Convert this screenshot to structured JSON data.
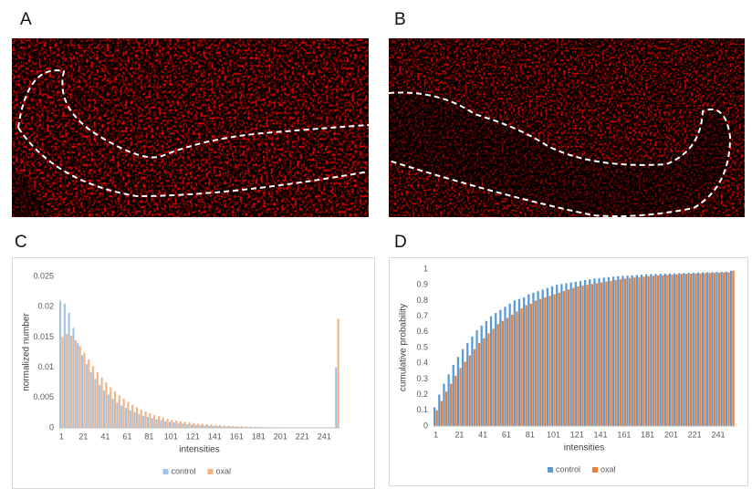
{
  "panel_labels": [
    "A",
    "B",
    "C",
    "D"
  ],
  "chart_data": [
    {
      "type": "bar",
      "x_label": "intensities",
      "y_label": "normalized number",
      "legend": "bottom",
      "grid": false,
      "categories": [
        "1",
        null,
        null,
        null,
        null,
        "21",
        null,
        null,
        null,
        null,
        "41",
        null,
        null,
        null,
        null,
        "61",
        null,
        null,
        null,
        null,
        "81",
        null,
        null,
        null,
        null,
        "101",
        null,
        null,
        null,
        null,
        "121",
        null,
        null,
        null,
        null,
        "141",
        null,
        null,
        null,
        null,
        "161",
        null,
        null,
        null,
        null,
        "181",
        null,
        null,
        null,
        null,
        "201",
        null,
        null,
        null,
        null,
        "221",
        null,
        null,
        null,
        null,
        "241",
        null,
        null,
        null
      ],
      "ylim": [
        0,
        0.025
      ],
      "yticks": [
        0,
        0.005,
        0.01,
        0.015,
        0.02,
        0.025
      ],
      "series": [
        {
          "name": "control",
          "color": "#9dc3e6",
          "values": [
            0.021,
            0.0205,
            0.019,
            0.0165,
            0.014,
            0.012,
            0.0105,
            0.0092,
            0.0081,
            0.0071,
            0.0062,
            0.0055,
            0.0048,
            0.0042,
            0.0037,
            0.0033,
            0.0029,
            0.0026,
            0.0023,
            0.002,
            0.0018,
            0.0016,
            0.0014,
            0.0013,
            0.0011,
            0.001,
            0.0009,
            0.0008,
            0.0007,
            0.0006,
            0.00055,
            0.0005,
            0.00045,
            0.0004,
            0.00035,
            0.0003,
            0.00028,
            0.00025,
            0.00022,
            0.0002,
            0.00018,
            0.00016,
            0.00014,
            0.00012,
            0.0001,
            0.0001,
            9e-05,
            8e-05,
            7e-05,
            6e-05,
            5e-05,
            5e-05,
            4e-05,
            4e-05,
            3e-05,
            3e-05,
            2e-05,
            2e-05,
            2e-05,
            1e-05,
            1e-05,
            1e-05,
            1e-05,
            0.01
          ]
        },
        {
          "name": "oxal",
          "color": "#f4b183",
          "values": [
            0.015,
            0.0155,
            0.0152,
            0.0145,
            0.0135,
            0.0124,
            0.0113,
            0.0102,
            0.0092,
            0.0083,
            0.0075,
            0.0067,
            0.006,
            0.0054,
            0.0048,
            0.0043,
            0.0038,
            0.0034,
            0.003,
            0.0027,
            0.0024,
            0.0021,
            0.0019,
            0.0017,
            0.0015,
            0.0013,
            0.0012,
            0.0011,
            0.001,
            0.0009,
            0.0008,
            0.0007,
            0.00065,
            0.0006,
            0.00055,
            0.0005,
            0.00045,
            0.0004,
            0.00035,
            0.0003,
            0.00028,
            0.00025,
            0.00022,
            0.0002,
            0.00018,
            0.00016,
            0.00014,
            0.00012,
            0.0001,
            9e-05,
            8e-05,
            7e-05,
            6e-05,
            5e-05,
            5e-05,
            4e-05,
            4e-05,
            3e-05,
            3e-05,
            2e-05,
            2e-05,
            2e-05,
            1e-05,
            0.018
          ]
        }
      ]
    },
    {
      "type": "bar",
      "x_label": "intensities",
      "y_label": "cumulative probability",
      "legend": "bottom",
      "grid": false,
      "categories": [
        "1",
        null,
        null,
        null,
        null,
        "21",
        null,
        null,
        null,
        null,
        "41",
        null,
        null,
        null,
        null,
        "61",
        null,
        null,
        null,
        null,
        "81",
        null,
        null,
        null,
        null,
        "101",
        null,
        null,
        null,
        null,
        "121",
        null,
        null,
        null,
        null,
        "141",
        null,
        null,
        null,
        null,
        "161",
        null,
        null,
        null,
        null,
        "181",
        null,
        null,
        null,
        null,
        "201",
        null,
        null,
        null,
        null,
        "221",
        null,
        null,
        null,
        null,
        "241",
        null,
        null,
        null
      ],
      "ylim": [
        0,
        1
      ],
      "yticks": [
        0,
        0.1,
        0.2,
        0.3,
        0.4,
        0.5,
        0.6,
        0.7,
        0.8,
        0.9,
        1
      ],
      "series": [
        {
          "name": "control",
          "color": "#5b9bd5",
          "values": [
            0.12,
            0.2,
            0.27,
            0.33,
            0.39,
            0.44,
            0.49,
            0.53,
            0.57,
            0.61,
            0.64,
            0.67,
            0.7,
            0.72,
            0.74,
            0.76,
            0.78,
            0.8,
            0.81,
            0.82,
            0.84,
            0.85,
            0.86,
            0.87,
            0.88,
            0.89,
            0.9,
            0.905,
            0.91,
            0.915,
            0.92,
            0.925,
            0.93,
            0.935,
            0.94,
            0.943,
            0.946,
            0.949,
            0.952,
            0.955,
            0.957,
            0.959,
            0.961,
            0.963,
            0.965,
            0.967,
            0.968,
            0.969,
            0.97,
            0.971,
            0.972,
            0.973,
            0.974,
            0.975,
            0.976,
            0.977,
            0.978,
            0.979,
            0.98,
            0.981,
            0.982,
            0.983,
            0.984,
            0.99
          ]
        },
        {
          "name": "oxal",
          "color": "#ed7d31",
          "values": [
            0.1,
            0.16,
            0.22,
            0.27,
            0.32,
            0.37,
            0.41,
            0.45,
            0.49,
            0.53,
            0.56,
            0.59,
            0.62,
            0.65,
            0.67,
            0.69,
            0.71,
            0.73,
            0.75,
            0.77,
            0.78,
            0.8,
            0.81,
            0.82,
            0.83,
            0.84,
            0.85,
            0.86,
            0.87,
            0.88,
            0.89,
            0.895,
            0.9,
            0.905,
            0.91,
            0.915,
            0.92,
            0.925,
            0.93,
            0.935,
            0.94,
            0.943,
            0.946,
            0.949,
            0.952,
            0.955,
            0.957,
            0.959,
            0.961,
            0.963,
            0.965,
            0.967,
            0.969,
            0.97,
            0.971,
            0.972,
            0.973,
            0.974,
            0.975,
            0.976,
            0.977,
            0.978,
            0.979,
            0.99
          ]
        }
      ]
    }
  ]
}
